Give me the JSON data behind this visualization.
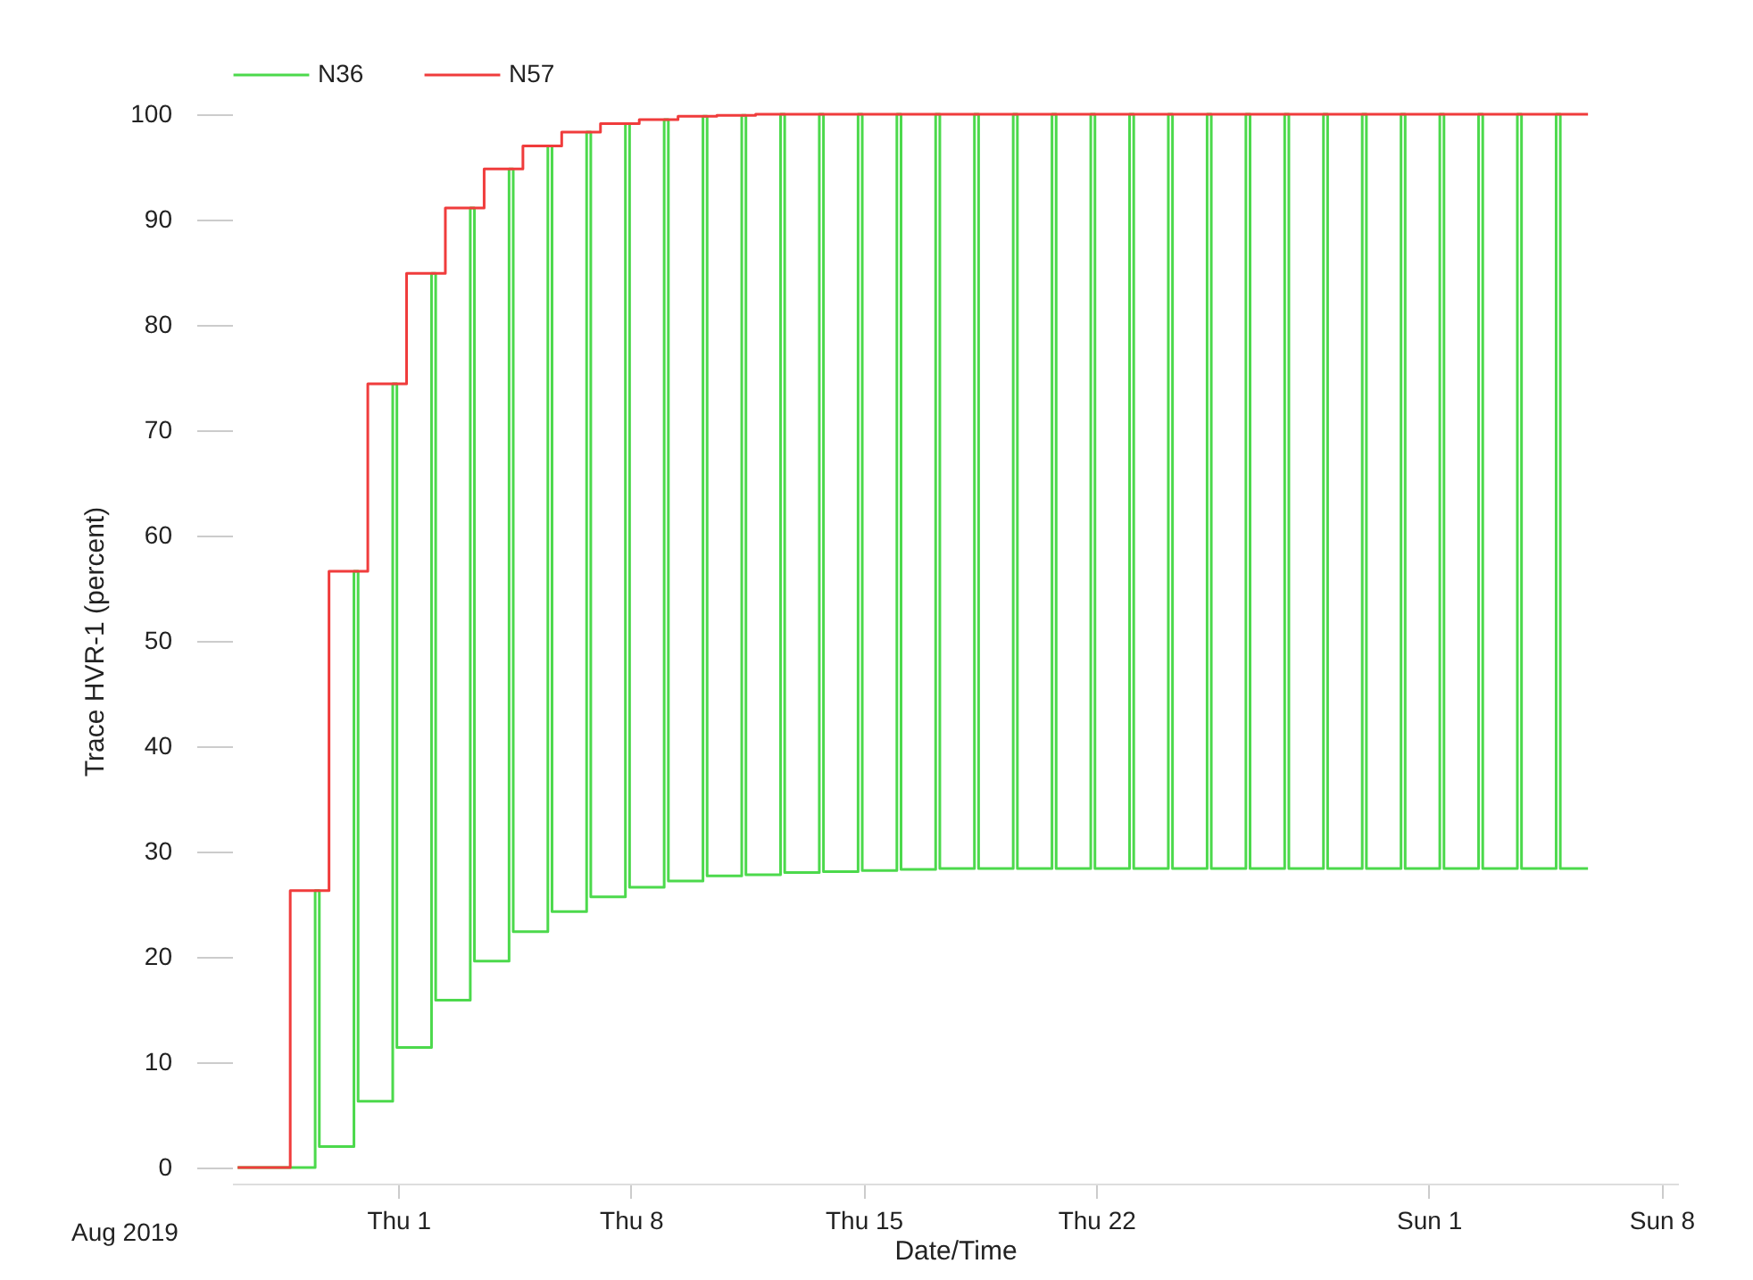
{
  "chart_data": {
    "type": "step",
    "xlabel": "Date/Time",
    "ylabel": "Trace HVR-1 (percent)",
    "annotations": [
      "Aug 2019"
    ],
    "xlim": [
      "2019-07-27",
      "2019-09-08T12:00"
    ],
    "xticks": [
      {
        "value": "2019-08-01",
        "label": "Thu 1"
      },
      {
        "value": "2019-08-08",
        "label": "Thu 8"
      },
      {
        "value": "2019-08-15",
        "label": "Thu 15"
      },
      {
        "value": "2019-08-22",
        "label": "Thu 22"
      },
      {
        "value": "2019-09-01",
        "label": "Sun 1"
      },
      {
        "value": "2019-09-08",
        "label": "Sun 8"
      }
    ],
    "ylim": [
      0,
      100
    ],
    "yticks": [
      0,
      10,
      20,
      30,
      40,
      50,
      60,
      70,
      80,
      90,
      100
    ],
    "grid": false,
    "legend": "top left",
    "marker": "none",
    "line_style": "solid",
    "series": [
      {
        "name": "N36",
        "color": "#4cd94c",
        "x": [
          "2019-07-27T04:00",
          "2019-07-29T12:00",
          "2019-07-29T15:00",
          "2019-07-30T16:00",
          "2019-07-30T19:00",
          "2019-07-31T20:00",
          "2019-07-31T23:00",
          "2019-08-02T00:00",
          "2019-08-02T03:00",
          "2019-08-03T04:00",
          "2019-08-03T07:00",
          "2019-08-04T08:00",
          "2019-08-04T11:00",
          "2019-08-05T12:00",
          "2019-08-05T15:00",
          "2019-08-06T16:00",
          "2019-08-06T19:00",
          "2019-08-07T20:00",
          "2019-08-07T23:00",
          "2019-08-09T00:00",
          "2019-08-09T03:00",
          "2019-08-10T04:00",
          "2019-08-10T07:00",
          "2019-08-11T08:00",
          "2019-08-11T11:00",
          "2019-08-12T12:00",
          "2019-08-12T15:00",
          "2019-08-13T16:00",
          "2019-08-13T19:00",
          "2019-08-14T20:00",
          "2019-08-14T23:00",
          "2019-08-16T00:00",
          "2019-08-16T03:00",
          "2019-08-17T04:00",
          "2019-08-17T07:00",
          "2019-08-18T08:00",
          "2019-08-18T11:00",
          "2019-08-19T12:00",
          "2019-08-19T15:00",
          "2019-08-20T16:00",
          "2019-08-20T19:00",
          "2019-08-21T20:00",
          "2019-08-21T23:00",
          "2019-08-23T00:00",
          "2019-08-23T03:00",
          "2019-08-24T04:00",
          "2019-08-24T07:00",
          "2019-08-25T08:00",
          "2019-08-25T11:00",
          "2019-08-26T12:00",
          "2019-08-26T15:00",
          "2019-08-27T16:00",
          "2019-08-27T19:00",
          "2019-08-28T20:00",
          "2019-08-28T23:00",
          "2019-08-30T00:00",
          "2019-08-30T03:00",
          "2019-08-31T04:00",
          "2019-08-31T07:00",
          "2019-09-01T08:00",
          "2019-09-01T11:00",
          "2019-09-02T12:00",
          "2019-09-02T15:00",
          "2019-09-03T16:00",
          "2019-09-03T19:00",
          "2019-09-04T20:00",
          "2019-09-04T23:00",
          "2019-09-05T19:00"
        ],
        "values": [
          0,
          26.3,
          2.0,
          56.6,
          6.3,
          74.4,
          11.4,
          84.9,
          15.9,
          91.1,
          19.6,
          94.8,
          22.4,
          97.0,
          24.3,
          98.3,
          25.7,
          99.1,
          26.6,
          99.5,
          27.2,
          99.8,
          27.7,
          99.9,
          27.8,
          100,
          28.0,
          100,
          28.1,
          100,
          28.2,
          100,
          28.3,
          100,
          28.4,
          100,
          28.4,
          100,
          28.4,
          100,
          28.4,
          100,
          28.4,
          100,
          28.4,
          100,
          28.4,
          100,
          28.4,
          100,
          28.4,
          100,
          28.4,
          100,
          28.4,
          100,
          28.4,
          100,
          28.4,
          100,
          28.4,
          100,
          28.4,
          100,
          28.4,
          100,
          28.4,
          28.4
        ]
      },
      {
        "name": "N57",
        "color": "#f03c3c",
        "x": [
          "2019-07-27T04:00",
          "2019-07-28T18:00",
          "2019-07-29T22:00",
          "2019-07-31T02:00",
          "2019-08-01T06:00",
          "2019-08-02T10:00",
          "2019-08-03T14:00",
          "2019-08-04T18:00",
          "2019-08-05T22:00",
          "2019-08-07T02:00",
          "2019-08-08T06:00",
          "2019-08-09T10:00",
          "2019-08-10T14:00",
          "2019-08-11T18:00",
          "2019-09-05T19:00"
        ],
        "values": [
          0,
          26.3,
          56.6,
          74.4,
          84.9,
          91.1,
          94.8,
          97.0,
          98.3,
          99.1,
          99.5,
          99.8,
          99.9,
          100,
          100
        ]
      }
    ]
  }
}
